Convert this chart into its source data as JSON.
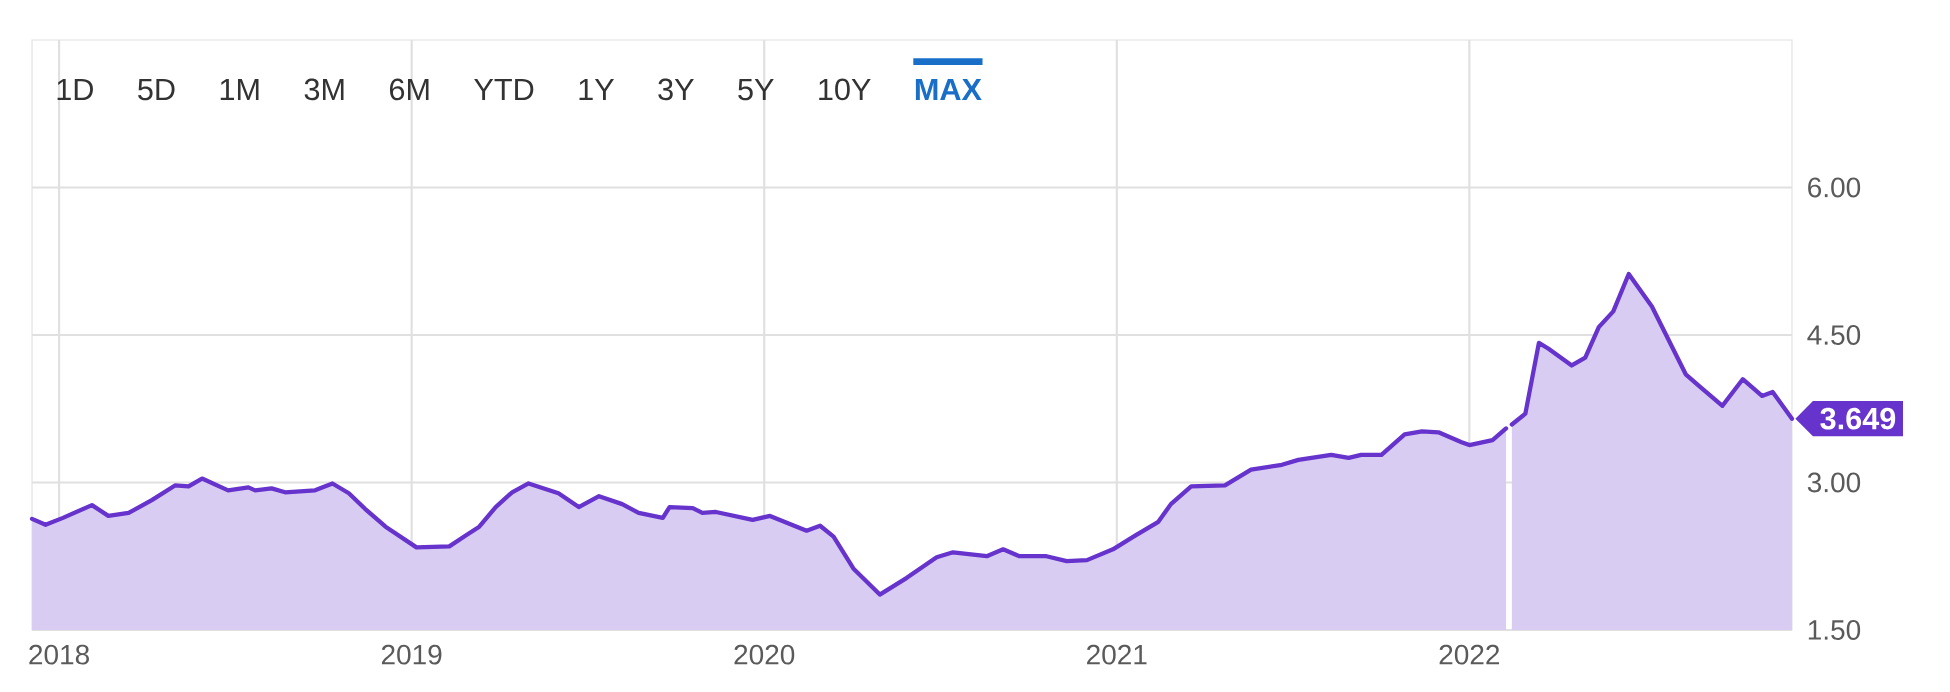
{
  "chart_data": {
    "type": "area",
    "x": [
      "2017-12-04",
      "2017-12-18",
      "2018-01-05",
      "2018-02-04",
      "2018-02-21",
      "2018-03-14",
      "2018-04-07",
      "2018-05-01",
      "2018-05-15",
      "2018-05-29",
      "2018-06-25",
      "2018-07-16",
      "2018-07-23",
      "2018-08-09",
      "2018-08-23",
      "2018-09-23",
      "2018-10-11",
      "2018-10-28",
      "2018-11-14",
      "2018-12-05",
      "2019-01-06",
      "2019-02-09",
      "2019-02-26",
      "2019-03-12",
      "2019-03-29",
      "2019-04-15",
      "2019-05-02",
      "2019-06-02",
      "2019-06-23",
      "2019-07-14",
      "2019-08-07",
      "2019-08-24",
      "2019-09-18",
      "2019-09-25",
      "2019-10-19",
      "2019-10-29",
      "2019-11-12",
      "2019-12-20",
      "2020-01-07",
      "2020-02-14",
      "2020-02-28",
      "2020-03-13",
      "2020-04-03",
      "2020-04-30",
      "2020-05-28",
      "2020-06-28",
      "2020-07-15",
      "2020-08-19",
      "2020-09-05",
      "2020-09-22",
      "2020-10-20",
      "2020-11-10",
      "2020-12-01",
      "2020-12-28",
      "2021-01-20",
      "2021-02-13",
      "2021-02-26",
      "2021-03-19",
      "2021-04-23",
      "2021-05-20",
      "2021-06-21",
      "2021-07-08",
      "2021-08-11",
      "2021-08-29",
      "2021-09-11",
      "2021-10-02",
      "2021-10-26",
      "2021-11-13",
      "2021-11-30",
      "2021-12-24",
      "2022-01-01",
      "2022-01-25",
      "2022-02-08",
      "2022-02-10",
      "2022-02-14",
      "2022-02-28",
      "2022-03-14",
      "2022-03-24",
      "2022-04-17",
      "2022-05-01",
      "2022-05-15",
      "2022-05-30",
      "2022-06-15",
      "2022-07-09",
      "2022-08-13",
      "2022-08-27",
      "2022-09-20",
      "2022-10-11",
      "2022-10-31",
      "2022-11-11",
      "2022-12-01"
    ],
    "series": [
      {
        "color": "#6633cc",
        "values": [
          2.63,
          2.57,
          2.64,
          2.77,
          2.66,
          2.69,
          2.82,
          2.97,
          2.96,
          3.04,
          2.92,
          2.95,
          2.92,
          2.94,
          2.9,
          2.92,
          2.99,
          2.89,
          2.73,
          2.55,
          2.34,
          2.35,
          2.46,
          2.55,
          2.75,
          2.9,
          2.99,
          2.89,
          2.75,
          2.86,
          2.78,
          2.69,
          2.64,
          2.75,
          2.74,
          2.69,
          2.7,
          2.62,
          2.66,
          2.51,
          2.56,
          2.45,
          2.12,
          1.86,
          2.03,
          2.24,
          2.29,
          2.25,
          2.32,
          2.25,
          2.25,
          2.2,
          2.21,
          2.32,
          2.46,
          2.6,
          2.78,
          2.96,
          2.97,
          3.13,
          3.18,
          3.23,
          3.28,
          3.25,
          3.28,
          3.28,
          3.49,
          3.52,
          3.51,
          3.41,
          3.38,
          3.43,
          3.55,
          null,
          3.59,
          3.7,
          4.42,
          4.36,
          4.19,
          4.27,
          4.58,
          4.74,
          5.12,
          4.79,
          4.1,
          3.98,
          3.78,
          4.05,
          3.88,
          3.92,
          3.649
        ]
      }
    ],
    "xlim": [
      "2017-12-04",
      "2022-12-01"
    ],
    "xticks": [
      "2018",
      "2019",
      "2020",
      "2021",
      "2022"
    ],
    "ylim": [
      1.5,
      7.5
    ],
    "yticks": [
      {
        "value": 1.5,
        "label": "1.50"
      },
      {
        "value": 3,
        "label": "3.00"
      },
      {
        "value": 4.5,
        "label": "4.50"
      },
      {
        "value": 6,
        "label": "6.00"
      }
    ],
    "grid": true,
    "annotations": [
      "1D",
      "5D",
      "1M",
      "3M",
      "6M",
      "YTD",
      "1Y",
      "3Y",
      "5Y",
      "10Y",
      "MAX",
      {
        "text": "3.649",
        "x": "2022-12-01",
        "y": 3.649
      }
    ]
  }
}
